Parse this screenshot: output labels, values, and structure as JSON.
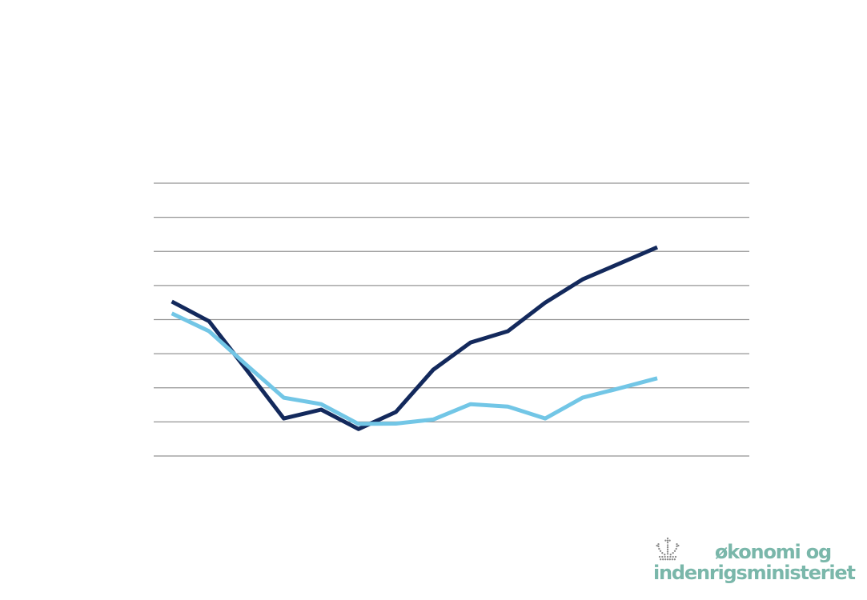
{
  "page": {
    "background": "#ffffff"
  },
  "chart_data": {
    "type": "line",
    "title": "",
    "xlabel": "",
    "ylabel": "",
    "axis_tick_labels_visible": false,
    "legend": "none",
    "grid": "horizontal-only",
    "gridline_count": 9,
    "gridline_color": "#949494",
    "plot_background": "#ffffff",
    "ylim": [
      0,
      8
    ],
    "x": [
      1,
      2,
      3,
      4,
      5,
      6,
      7,
      8,
      9,
      10,
      11,
      12,
      13,
      14
    ],
    "series": [
      {
        "name": "dark-blue-line",
        "color": "#13295c",
        "stroke_width": 5,
        "values": [
          4.53,
          3.95,
          2.53,
          1.1,
          1.36,
          0.79,
          1.29,
          2.53,
          3.33,
          3.66,
          4.5,
          5.18,
          5.65,
          6.12
        ]
      },
      {
        "name": "light-blue-line",
        "color": "#72c6e6",
        "stroke_width": 5,
        "values": [
          4.18,
          3.66,
          2.67,
          1.71,
          1.52,
          0.94,
          0.95,
          1.07,
          1.52,
          1.45,
          1.1,
          1.71,
          1.99,
          2.28
        ]
      }
    ],
    "note": "no axis labels or legend visible; values estimated in gridline units (bottom gridline = 0, one unit per gridline)"
  },
  "logo": {
    "line1": "økonomi og",
    "line2": "indenrigsministeriet",
    "text_color": "#7ab7aa",
    "crown_color": "#8a8a8a",
    "crown_icon": "danish-royal-crown"
  }
}
